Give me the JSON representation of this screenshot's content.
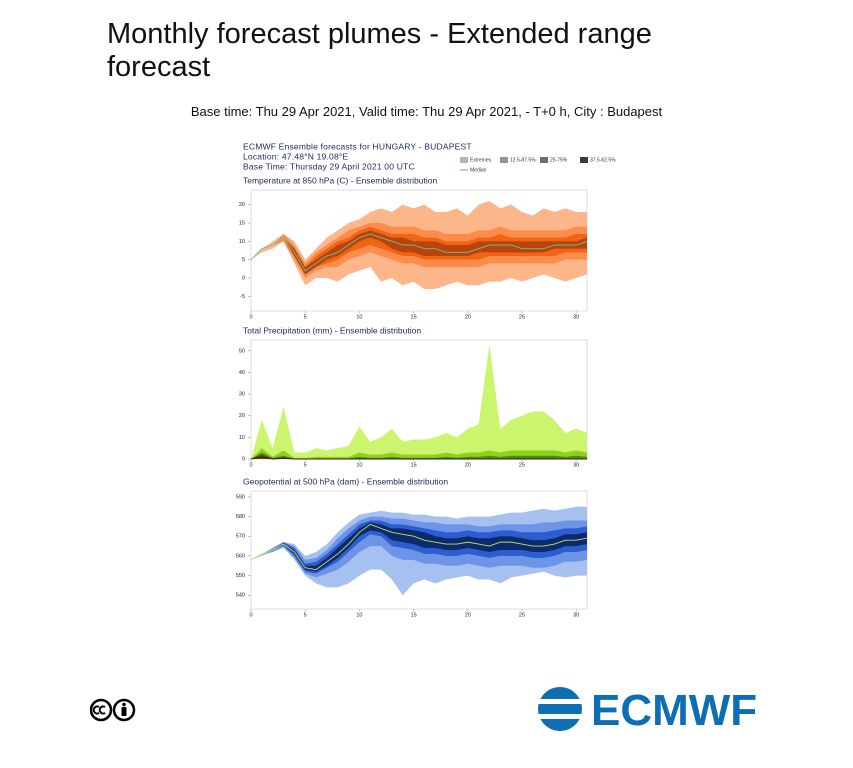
{
  "page": {
    "title": "Monthly forecast plumes - Extended range forecast",
    "subtitle": "Base time: Thu 29 Apr 2021, Valid time: Thu 29 Apr 2021, - T+0 h, City : Budapest",
    "logo": "ECMWF"
  },
  "header": {
    "lines": [
      "ECMWF Ensemble forecasts for HUNGARY - BUDAPEST",
      "Location:  47.48°N 19.08°E",
      "Base Time: Thursday 29 April 2021 00 UTC"
    ],
    "legend": [
      {
        "name": "Extremes",
        "color": "#b4b4b4"
      },
      {
        "name": "12.5-87.5%",
        "color": "#969696"
      },
      {
        "name": "25-75%",
        "color": "#6e6e6e"
      },
      {
        "name": "37.5-62.5%",
        "color": "#3c3c3c"
      },
      {
        "name": "Median",
        "color": "#5fc8a0"
      }
    ]
  },
  "chart_data": [
    {
      "type": "area",
      "title": "Temperature at 850 hPa (C) - Ensemble distribution",
      "x": [
        0,
        1,
        2,
        3,
        4,
        5,
        6,
        7,
        8,
        9,
        10,
        11,
        12,
        13,
        14,
        15,
        16,
        17,
        18,
        19,
        20,
        21,
        22,
        23,
        24,
        25,
        26,
        27,
        28,
        29,
        30,
        31
      ],
      "xlim": [
        0,
        31
      ],
      "xticks": [
        0,
        5,
        10,
        15,
        20,
        25,
        30
      ],
      "ylim": [
        -9,
        24
      ],
      "yticks": [
        -5,
        0,
        5,
        10,
        15,
        20
      ],
      "bands": [
        {
          "color": "#fdb58a",
          "low": [
            5,
            7,
            8,
            10,
            4,
            -2,
            0,
            0,
            -1,
            1,
            2,
            3,
            -1,
            0,
            -2,
            -1,
            -3,
            -3,
            -2,
            -1,
            -2,
            -2,
            -1,
            -1,
            0,
            -1,
            0,
            1,
            0,
            -1,
            0,
            1
          ],
          "high": [
            5,
            8,
            10,
            12,
            10,
            5,
            8,
            11,
            13,
            15,
            16,
            18,
            19,
            18,
            20,
            19,
            20,
            18,
            18,
            19,
            17,
            20,
            21,
            19,
            20,
            18,
            17,
            19,
            18,
            19,
            18,
            18
          ]
        },
        {
          "color": "#fb8c4c",
          "low": [
            5,
            8,
            9,
            10,
            5,
            0,
            2,
            3,
            3,
            5,
            6,
            7,
            6,
            5,
            4,
            4,
            3,
            3,
            3,
            3,
            3,
            3,
            4,
            4,
            4,
            4,
            4,
            4,
            4,
            5,
            5,
            5
          ],
          "high": [
            5,
            8,
            9,
            12,
            9,
            4,
            7,
            9,
            11,
            13,
            14,
            15,
            15,
            14,
            14,
            14,
            13,
            13,
            12,
            12,
            12,
            13,
            13,
            14,
            13,
            13,
            13,
            13,
            13,
            13,
            14,
            14
          ]
        },
        {
          "color": "#f06414",
          "low": [
            5,
            8,
            9,
            11,
            6,
            1,
            3,
            4,
            5,
            7,
            8,
            9,
            8,
            7,
            6,
            6,
            5,
            5,
            5,
            5,
            5,
            5,
            6,
            6,
            6,
            6,
            6,
            6,
            6,
            7,
            7,
            7
          ],
          "high": [
            5,
            8,
            9,
            11,
            8,
            3,
            6,
            8,
            10,
            11,
            13,
            14,
            13,
            12,
            12,
            12,
            11,
            11,
            10,
            10,
            10,
            11,
            11,
            12,
            11,
            11,
            11,
            11,
            11,
            11,
            12,
            12
          ]
        },
        {
          "color": "#b9430a",
          "low": [
            5,
            8,
            9,
            11,
            6,
            1,
            3,
            5,
            6,
            8,
            10,
            11,
            10,
            8,
            7,
            7,
            6,
            6,
            6,
            6,
            6,
            7,
            7,
            7,
            7,
            7,
            7,
            7,
            8,
            8,
            8,
            8
          ],
          "high": [
            5,
            8,
            9,
            11,
            8,
            3,
            5,
            7,
            9,
            10,
            12,
            13,
            12,
            11,
            11,
            10,
            10,
            10,
            9,
            9,
            9,
            10,
            10,
            10,
            10,
            10,
            10,
            10,
            10,
            10,
            10,
            11
          ]
        }
      ],
      "median": {
        "color": "#5fc8a0",
        "values": [
          5,
          8,
          9,
          11,
          7,
          2,
          4,
          6,
          7,
          9,
          11,
          12,
          11,
          10,
          9,
          9,
          8,
          8,
          7,
          7,
          7,
          8,
          9,
          9,
          9,
          8,
          8,
          8,
          9,
          9,
          9,
          10
        ]
      }
    },
    {
      "type": "area",
      "title": "Total Precipitation (mm) - Ensemble distribution",
      "x": [
        0,
        1,
        2,
        3,
        4,
        5,
        6,
        7,
        8,
        9,
        10,
        11,
        12,
        13,
        14,
        15,
        16,
        17,
        18,
        19,
        20,
        21,
        22,
        23,
        24,
        25,
        26,
        27,
        28,
        29,
        30,
        31
      ],
      "xlim": [
        0,
        31
      ],
      "xticks": [
        0,
        5,
        10,
        15,
        20,
        25,
        30
      ],
      "ylim": [
        0,
        55
      ],
      "yticks": [
        0,
        10,
        20,
        30,
        40,
        50
      ],
      "bands": [
        {
          "color": "#ccf56e",
          "low": [
            0,
            0,
            0,
            0,
            0,
            0,
            0,
            0,
            0,
            0,
            0,
            0,
            0,
            0,
            0,
            0,
            0,
            0,
            0,
            0,
            0,
            0,
            0,
            0,
            0,
            0,
            0,
            0,
            0,
            0,
            0,
            0
          ],
          "high": [
            0,
            18,
            5,
            24,
            3,
            3,
            5,
            4,
            5,
            6,
            15,
            8,
            10,
            14,
            8,
            9,
            9,
            10,
            12,
            10,
            14,
            16,
            53,
            14,
            18,
            20,
            22,
            22,
            18,
            12,
            14,
            12
          ]
        },
        {
          "color": "#8ed21e",
          "low": [
            0,
            0,
            0,
            0,
            0,
            0,
            0,
            0,
            0,
            0,
            0,
            0,
            0,
            0,
            0,
            0,
            0,
            0,
            0,
            0,
            0,
            0,
            0,
            0,
            0,
            0,
            0,
            0,
            0,
            0,
            0,
            0
          ],
          "high": [
            0,
            5,
            1,
            4,
            0.5,
            0.5,
            1,
            1,
            1,
            1,
            3,
            2,
            2,
            3,
            2,
            2,
            2,
            2,
            3,
            2,
            3,
            3,
            4,
            3,
            4,
            4,
            4,
            4,
            4,
            3,
            4,
            3
          ]
        },
        {
          "color": "#4e8c12",
          "low": [
            0,
            0,
            0,
            0,
            0,
            0,
            0,
            0,
            0,
            0,
            0,
            0,
            0,
            0,
            0,
            0,
            0,
            0,
            0,
            0,
            0,
            0,
            0,
            0,
            0,
            0,
            0,
            0,
            0,
            0,
            0,
            0
          ],
          "high": [
            0,
            3,
            0.5,
            1.5,
            0.2,
            0.2,
            0.3,
            0.3,
            0.3,
            0.3,
            1,
            0.5,
            0.5,
            1,
            0.5,
            0.5,
            0.5,
            0.5,
            1,
            0.5,
            1,
            1,
            1.5,
            1,
            1.5,
            1.5,
            1.5,
            1.5,
            1.5,
            1,
            1.5,
            1
          ]
        },
        {
          "color": "#6b3a1a",
          "low": [
            0,
            0,
            0,
            0,
            0,
            0,
            0,
            0,
            0,
            0,
            0,
            0,
            0,
            0,
            0,
            0,
            0,
            0,
            0,
            0,
            0,
            0,
            0,
            0,
            0,
            0,
            0,
            0,
            0,
            0,
            0,
            0
          ],
          "high": [
            0,
            2,
            0.2,
            0.8,
            0,
            0,
            0,
            0,
            0,
            0,
            0.2,
            0,
            0,
            0.2,
            0,
            0,
            0,
            0,
            0.2,
            0,
            0.2,
            0.2,
            0.3,
            0.2,
            0.3,
            0.3,
            0.3,
            0.3,
            0.3,
            0.2,
            0.3,
            0.2
          ]
        }
      ],
      "median": {
        "color": "#3a1f0e",
        "values": [
          0,
          1,
          0,
          0.3,
          0,
          0,
          0,
          0,
          0,
          0,
          0,
          0,
          0,
          0,
          0,
          0,
          0,
          0,
          0,
          0,
          0,
          0,
          0,
          0,
          0,
          0,
          0,
          0,
          0,
          0,
          0,
          0
        ]
      }
    },
    {
      "type": "area",
      "title": "Geopotential at 500 hPa (dam) - Ensemble distribution",
      "x": [
        0,
        1,
        2,
        3,
        4,
        5,
        6,
        7,
        8,
        9,
        10,
        11,
        12,
        13,
        14,
        15,
        16,
        17,
        18,
        19,
        20,
        21,
        22,
        23,
        24,
        25,
        26,
        27,
        28,
        29,
        30,
        31
      ],
      "xlim": [
        0,
        31
      ],
      "xticks": [
        0,
        5,
        10,
        15,
        20,
        25,
        30
      ],
      "ylim": [
        533,
        593
      ],
      "yticks": [
        540,
        550,
        560,
        570,
        580,
        590
      ],
      "bands": [
        {
          "color": "#a6c0f0",
          "low": [
            558,
            560,
            562,
            564,
            558,
            550,
            546,
            544,
            544,
            546,
            550,
            553,
            553,
            548,
            540,
            546,
            548,
            546,
            548,
            549,
            550,
            548,
            548,
            546,
            549,
            550,
            551,
            552,
            550,
            549,
            550,
            550
          ],
          "high": [
            558,
            561,
            564,
            567,
            566,
            560,
            562,
            566,
            572,
            577,
            581,
            582,
            583,
            582,
            582,
            581,
            581,
            580,
            580,
            579,
            580,
            580,
            580,
            581,
            582,
            582,
            583,
            584,
            583,
            584,
            585,
            585
          ]
        },
        {
          "color": "#6e94e8",
          "low": [
            558,
            561,
            562,
            565,
            559,
            551,
            549,
            551,
            553,
            557,
            562,
            565,
            565,
            560,
            558,
            558,
            556,
            556,
            555,
            555,
            556,
            555,
            554,
            555,
            555,
            555,
            554,
            554,
            555,
            557,
            557,
            558
          ],
          "high": [
            558,
            561,
            564,
            567,
            565,
            558,
            559,
            563,
            569,
            574,
            578,
            580,
            580,
            579,
            579,
            578,
            577,
            577,
            576,
            576,
            576,
            575,
            575,
            576,
            576,
            576,
            576,
            577,
            577,
            578,
            578,
            578
          ]
        },
        {
          "color": "#2d5ed0",
          "low": [
            558,
            561,
            563,
            565,
            560,
            552,
            551,
            554,
            557,
            562,
            567,
            571,
            570,
            565,
            564,
            563,
            561,
            561,
            560,
            560,
            561,
            560,
            559,
            560,
            560,
            560,
            559,
            559,
            560,
            562,
            562,
            563
          ],
          "high": [
            558,
            561,
            563,
            567,
            564,
            556,
            557,
            561,
            566,
            571,
            576,
            578,
            578,
            576,
            576,
            575,
            574,
            573,
            572,
            572,
            573,
            572,
            572,
            573,
            573,
            572,
            572,
            572,
            573,
            574,
            574,
            575
          ]
        },
        {
          "color": "#0c2a70",
          "low": [
            558,
            561,
            563,
            566,
            561,
            553,
            552,
            555,
            559,
            564,
            570,
            573,
            572,
            568,
            567,
            566,
            564,
            564,
            563,
            563,
            564,
            563,
            562,
            563,
            563,
            563,
            562,
            562,
            563,
            565,
            565,
            566
          ],
          "high": [
            558,
            561,
            563,
            566,
            563,
            555,
            555,
            559,
            564,
            569,
            574,
            577,
            576,
            574,
            574,
            573,
            572,
            570,
            569,
            569,
            570,
            569,
            569,
            570,
            570,
            569,
            568,
            568,
            569,
            571,
            571,
            572
          ]
        }
      ],
      "median": {
        "color": "#c8e04a",
        "values": [
          558,
          561,
          563,
          566,
          562,
          554,
          553,
          557,
          561,
          566,
          572,
          576,
          574,
          572,
          571,
          570,
          568,
          567,
          566,
          566,
          567,
          566,
          565,
          567,
          567,
          566,
          565,
          565,
          566,
          568,
          568,
          569
        ]
      }
    }
  ]
}
